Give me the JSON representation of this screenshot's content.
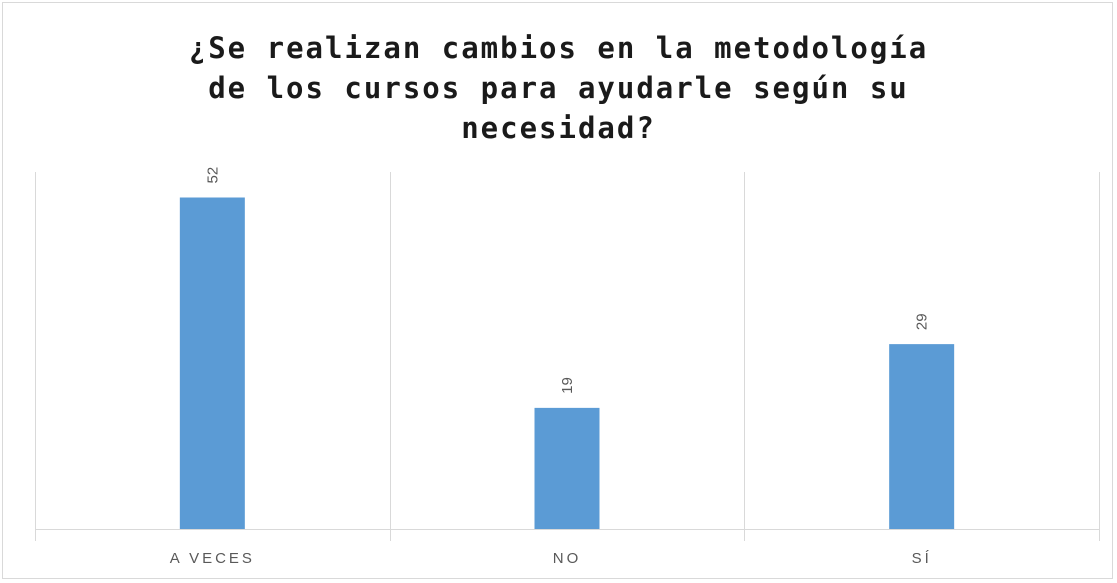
{
  "chart_data": {
    "type": "bar",
    "title": "¿Se realizan cambios en la metodología\nde los cursos para ayudarle según su\nnecesidad?",
    "categories": [
      "A VECES",
      "NO",
      "SÍ"
    ],
    "values": [
      52,
      19,
      29
    ],
    "ylim": [
      0,
      56
    ],
    "data_labels": true,
    "data_label_orientation": "vertical",
    "grid": "vertical category separators",
    "legend": "none",
    "colors": {
      "bar": "#5b9bd5",
      "grid": "#d9d9d9",
      "text": "#595959",
      "title": "#1a1a1a"
    }
  }
}
